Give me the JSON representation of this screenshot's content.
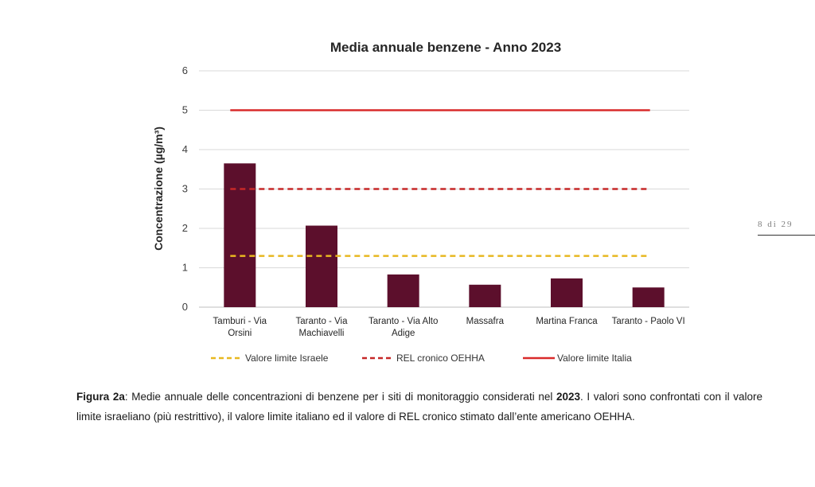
{
  "chart_data": {
    "type": "bar",
    "title": "Media annuale benzene - Anno 2023",
    "ylabel": "Concentrazione (µg/m³)",
    "xlabel": "",
    "ylim": [
      0,
      6
    ],
    "yticks": [
      0,
      1,
      2,
      3,
      4,
      5,
      6
    ],
    "grid": true,
    "legend_position": "bottom",
    "categories": [
      [
        "Tamburi - Via",
        "Orsini"
      ],
      [
        "Taranto - Via",
        "Machiavelli"
      ],
      [
        "Taranto - Via Alto",
        "Adige"
      ],
      [
        "Massafra"
      ],
      [
        "Martina Franca"
      ],
      [
        "Taranto - Paolo VI"
      ]
    ],
    "series": [
      {
        "type": "bar",
        "color": "#5c0f2c",
        "values": [
          3.65,
          2.07,
          0.83,
          0.57,
          0.73,
          0.5
        ]
      }
    ],
    "reference_lines": [
      {
        "name": "Valore limite Israele",
        "value": 1.3,
        "color": "#e8b820",
        "style": "dashed"
      },
      {
        "name": "REL cronico OEHHA",
        "value": 3.0,
        "color": "#c62828",
        "style": "dashed"
      },
      {
        "name": "Valore limite Italia",
        "value": 5.0,
        "color": "#d92b2b",
        "style": "solid"
      }
    ]
  },
  "page_number": "8 di 29",
  "caption": {
    "label": "Figura 2a",
    "text1": ": Medie annuale delle concentrazioni di benzene per i siti di monitoraggio considerati nel ",
    "year": "2023",
    "text2": ". I valori sono confrontati con il valore limite israeliano (più restrittivo), il valore limite italiano ed il valore di REL cronico stimato dall’ente americano OEHHA."
  }
}
